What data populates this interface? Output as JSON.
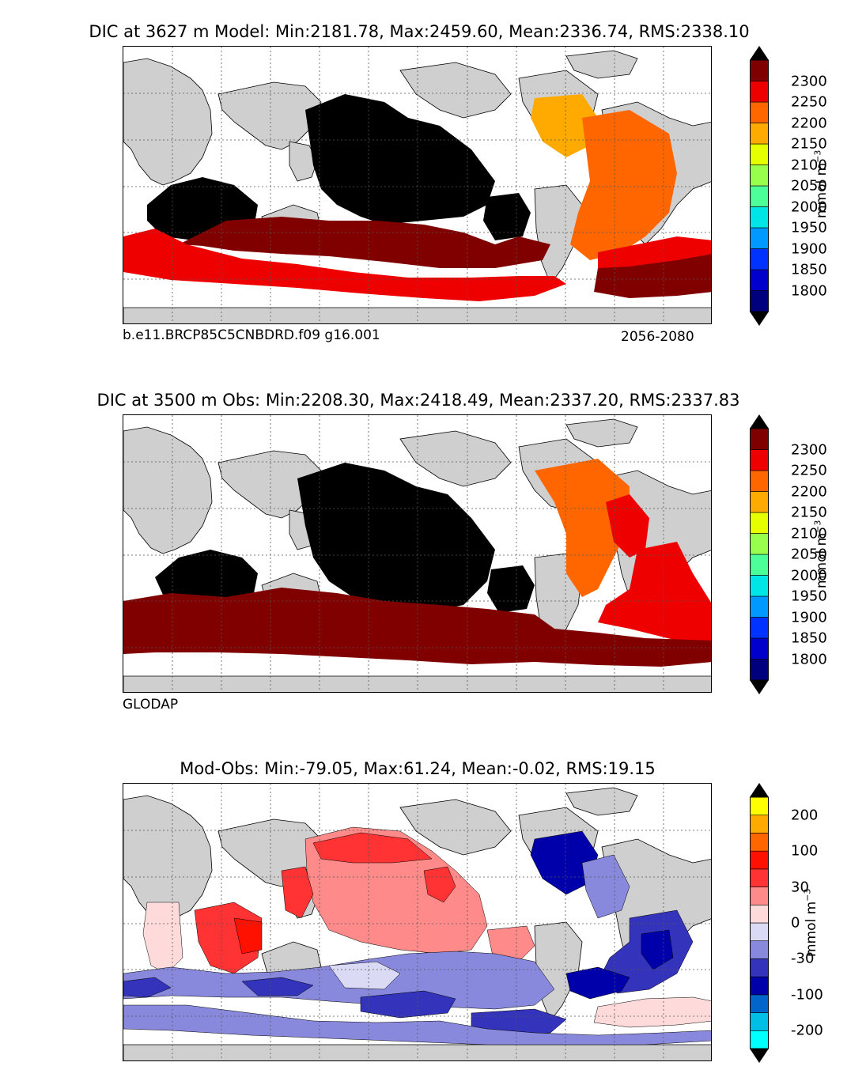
{
  "panels": [
    {
      "title": "DIC at 3627 m Model: Min:2181.78, Max:2459.60, Mean:2336.74, RMS:2338.10",
      "caption_left": "b.e11.BRCP85C5CNBDRD.f09 g16.001",
      "caption_right": "2056-2080",
      "colorbar_unit": "mmol m",
      "colorbar_unit_exp": "−3",
      "colorbar_ticks": [
        "1800",
        "1850",
        "1900",
        "1950",
        "2000",
        "2050",
        "2100",
        "2150",
        "2200",
        "2250",
        "2300"
      ]
    },
    {
      "title": "DIC at 3500 m Obs: Min:2208.30, Max:2418.49, Mean:2337.20, RMS:2337.83",
      "caption_left": "GLODAP",
      "caption_right": "",
      "colorbar_unit": "mmol m",
      "colorbar_unit_exp": "−3",
      "colorbar_ticks": [
        "1800",
        "1850",
        "1900",
        "1950",
        "2000",
        "2050",
        "2100",
        "2150",
        "2200",
        "2250",
        "2300"
      ]
    },
    {
      "title": "Mod-Obs: Min:-79.05, Max:61.24, Mean:-0.02, RMS:19.15",
      "caption_left": "",
      "caption_right": "",
      "colorbar_unit": "mmol m",
      "colorbar_unit_exp": "−3",
      "colorbar_ticks": [
        "-200",
        "-100",
        "-30",
        "0",
        "30",
        "100",
        "200"
      ]
    }
  ],
  "colors": {
    "land": "#cfcfcf",
    "missing": "#ffffff",
    "black_region": "#000000",
    "abs_scale": [
      "#00007f",
      "#0000cc",
      "#0033ff",
      "#0099ff",
      "#00e5e5",
      "#4dff99",
      "#99ff4d",
      "#e5ff00",
      "#ffaa00",
      "#ff6600",
      "#ee0000",
      "#800000"
    ],
    "diff_scale": [
      "#00ffff",
      "#00bfe6",
      "#0066cc",
      "#0000aa",
      "#3333bb",
      "#8888dd",
      "#dadaf5",
      "#ffdada",
      "#ff8a8a",
      "#ff3333",
      "#ff1100",
      "#ff6600",
      "#ffaa00",
      "#ffff00"
    ]
  },
  "chart_data": [
    {
      "type": "heatmap",
      "title": "DIC at 3627 m Model: Min:2181.78, Max:2459.60, Mean:2336.74, RMS:2338.10",
      "units": "mmol m-3",
      "colorbar_range": [
        1775,
        2325
      ],
      "colorbar_step": 50,
      "stats": {
        "min": 2181.78,
        "max": 2459.6,
        "mean": 2336.74,
        "rms": 2338.1
      }
    },
    {
      "type": "heatmap",
      "title": "DIC at 3500 m Obs: Min:2208.30, Max:2418.49, Mean:2337.20, RMS:2337.83",
      "units": "mmol m-3",
      "colorbar_range": [
        1775,
        2325
      ],
      "colorbar_step": 50,
      "stats": {
        "min": 2208.3,
        "max": 2418.49,
        "mean": 2337.2,
        "rms": 2337.83
      }
    },
    {
      "type": "heatmap",
      "title": "Mod-Obs: Min:-79.05, Max:61.24, Mean:-0.02, RMS:19.15",
      "units": "mmol m-3",
      "colorbar_levels": [
        -200,
        -100,
        -30,
        0,
        30,
        100,
        200
      ],
      "stats": {
        "min": -79.05,
        "max": 61.24,
        "mean": -0.02,
        "rms": 19.15
      }
    }
  ]
}
